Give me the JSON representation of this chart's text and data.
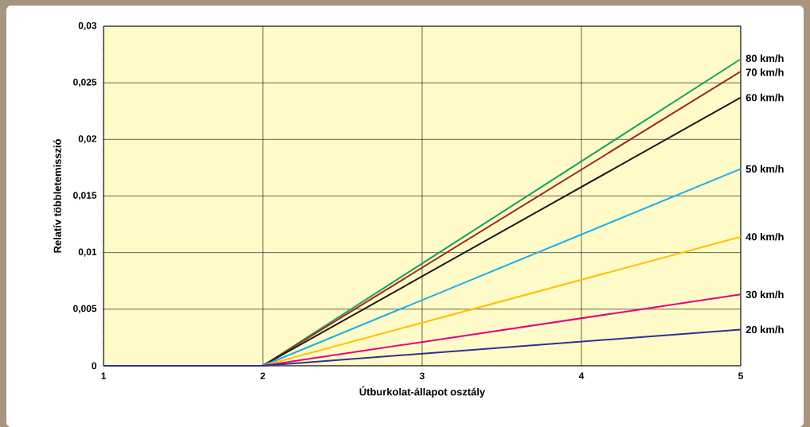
{
  "chart_data": {
    "type": "line",
    "xlabel": "Útburkolat-állapot osztály",
    "ylabel": "Relatív többletemisszió",
    "x": [
      1,
      2,
      5
    ],
    "series": [
      {
        "name": "80 km/h",
        "color": "#1aa060",
        "values": [
          0,
          0,
          0.0271
        ]
      },
      {
        "name": "70 km/h",
        "color": "#9e2a20",
        "values": [
          0,
          0,
          0.026
        ]
      },
      {
        "name": "60 km/h",
        "color": "#1a1a1a",
        "values": [
          0,
          0,
          0.0237
        ]
      },
      {
        "name": "50 km/h",
        "color": "#1aaee8",
        "values": [
          0,
          0,
          0.0174
        ]
      },
      {
        "name": "40 km/h",
        "color": "#ffc000",
        "values": [
          0,
          0,
          0.0114
        ]
      },
      {
        "name": "30 km/h",
        "color": "#e6007e",
        "values": [
          0,
          0,
          0.0063
        ]
      },
      {
        "name": "20 km/h",
        "color": "#2e3192",
        "values": [
          0,
          0,
          0.0032
        ]
      }
    ],
    "xlim": [
      1,
      5
    ],
    "ylim": [
      0,
      0.03
    ],
    "xticks": [
      1,
      2,
      3,
      4,
      5
    ],
    "yticks": [
      {
        "value": 0,
        "label": "0"
      },
      {
        "value": 0.005,
        "label": "0,005"
      },
      {
        "value": 0.01,
        "label": "0,01"
      },
      {
        "value": 0.015,
        "label": "0,015"
      },
      {
        "value": 0.02,
        "label": "0,02"
      },
      {
        "value": 0.025,
        "label": "0,025"
      },
      {
        "value": 0.03,
        "label": "0,03"
      }
    ],
    "grid": true,
    "marker": "none",
    "line_style": "solid"
  }
}
